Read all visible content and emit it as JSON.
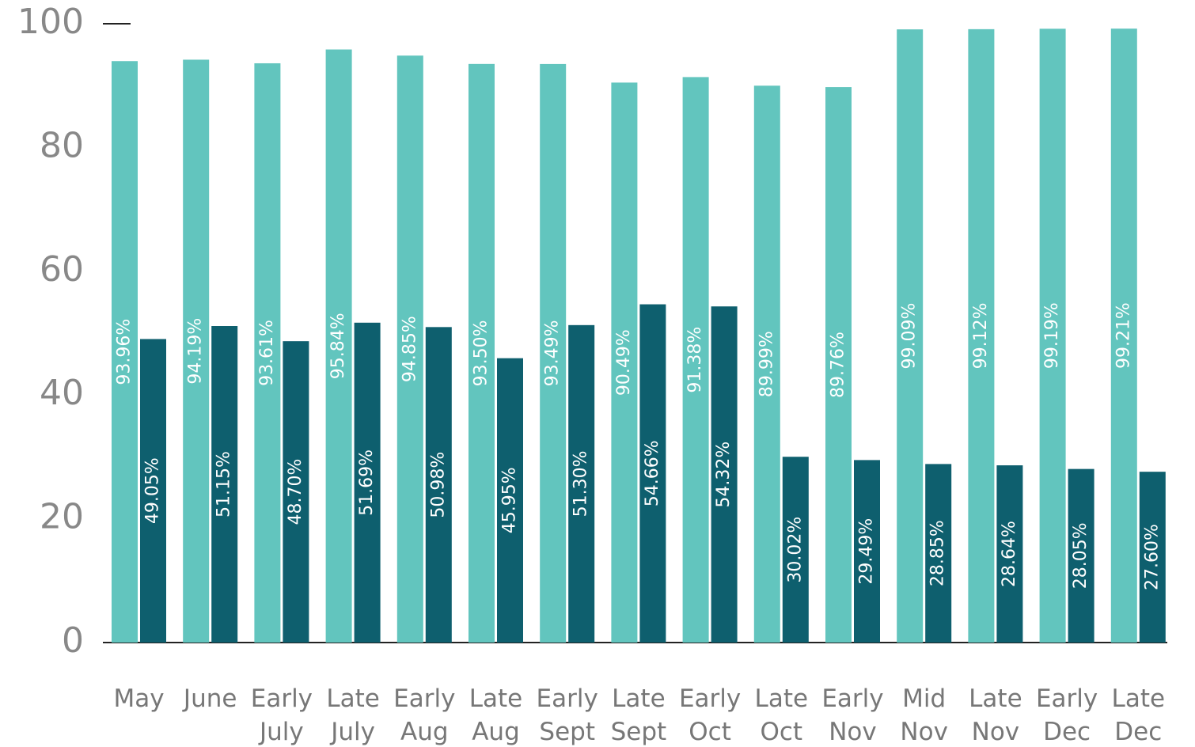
{
  "chart_data": {
    "type": "bar",
    "categories": [
      "May",
      "June",
      "Early July",
      "Late July",
      "Early Aug",
      "Late Aug",
      "Early Sept",
      "Late Sept",
      "Early Oct",
      "Late Oct",
      "Early Nov",
      "Mid Nov",
      "Late Nov",
      "Early Dec",
      "Late Dec"
    ],
    "series": [
      {
        "color": "#62c5be",
        "values": [
          93.96,
          94.19,
          93.61,
          95.84,
          94.85,
          93.5,
          93.49,
          90.49,
          91.38,
          89.99,
          89.76,
          99.09,
          99.12,
          99.19,
          99.21
        ],
        "value_labels": [
          "93.96%",
          "94.19%",
          "93.61%",
          "95.84%",
          "94.85%",
          "93.50%",
          "93.49%",
          "90.49%",
          "91.38%",
          "89.99%",
          "89.76%",
          "99.09%",
          "99.12%",
          "99.19%",
          "99.21%"
        ]
      },
      {
        "color": "#0e5f6e",
        "values": [
          49.05,
          51.15,
          48.7,
          51.69,
          50.98,
          45.95,
          51.3,
          54.66,
          54.32,
          30.02,
          29.49,
          28.85,
          28.64,
          28.05,
          27.6
        ],
        "value_labels": [
          "49.05%",
          "51.15%",
          "48.70%",
          "51.69%",
          "50.98%",
          "45.95%",
          "51.30%",
          "54.66%",
          "54.32%",
          "30.02%",
          "29.49%",
          "28.85%",
          "28.64%",
          "28.05%",
          "27.60%"
        ]
      }
    ],
    "ylim": [
      0,
      100
    ],
    "yticks": [
      0,
      20,
      40,
      60,
      80,
      100
    ]
  }
}
